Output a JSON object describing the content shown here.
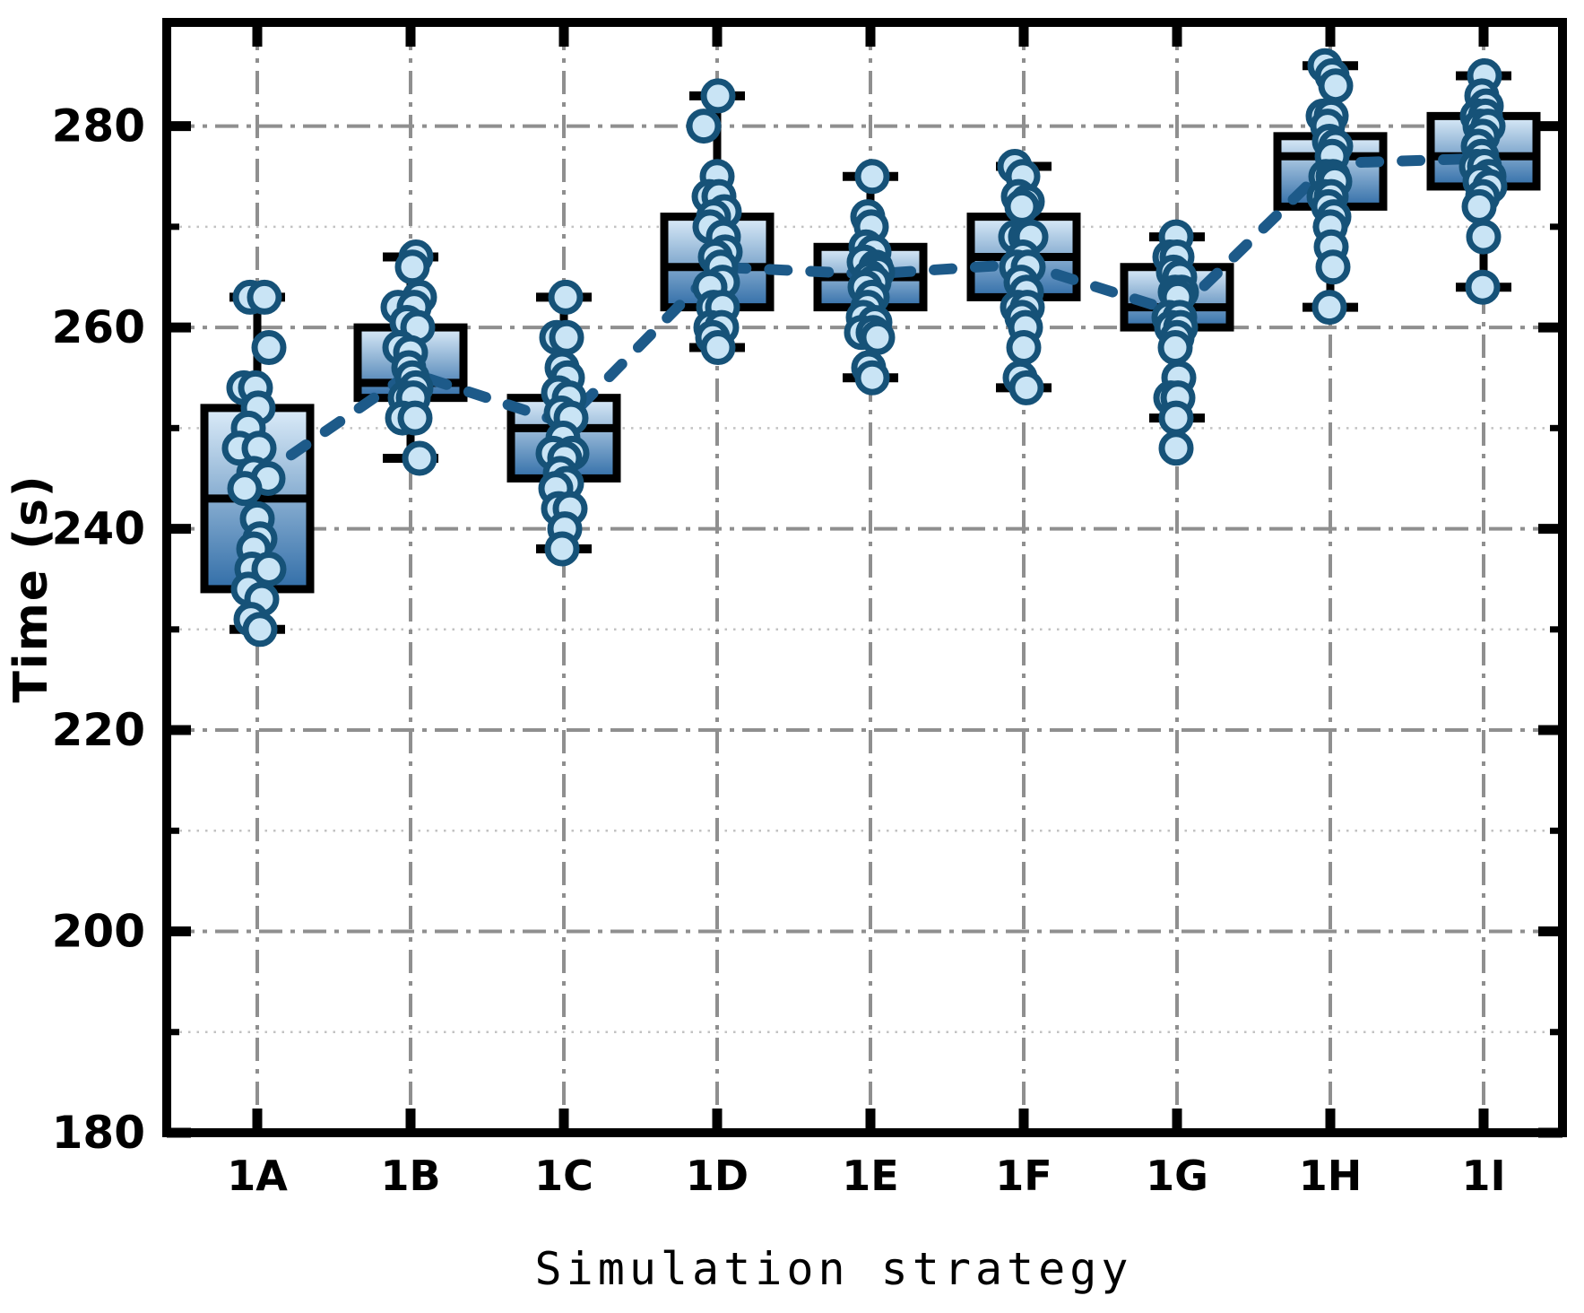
{
  "figure": {
    "xlabel": "Simulation strategy",
    "ylabel": "Time (s)"
  },
  "chart_data": {
    "type": "box",
    "title": "",
    "xlabel": "Simulation strategy",
    "ylabel": "Time (s)",
    "categories": [
      "1A",
      "1B",
      "1C",
      "1D",
      "1E",
      "1F",
      "1G",
      "1H",
      "1I"
    ],
    "ylim": [
      180,
      290.3
    ],
    "yticks_major": [
      180,
      200,
      220,
      240,
      260,
      280
    ],
    "yticks_minor": [
      190,
      210,
      230,
      250,
      270
    ],
    "grid": "major horizontal + vertical dash-dot, minor horizontal dotted",
    "legend": null,
    "boxes": [
      {
        "label": "1A",
        "whisker_low": 230,
        "q1": 234,
        "median": 243,
        "q3": 252,
        "whisker_high": 263
      },
      {
        "label": "1B",
        "whisker_low": 247,
        "q1": 253,
        "median": 254.5,
        "q3": 260,
        "whisker_high": 267
      },
      {
        "label": "1C",
        "whisker_low": 238,
        "q1": 245,
        "median": 250,
        "q3": 253,
        "whisker_high": 263
      },
      {
        "label": "1D",
        "whisker_low": 258,
        "q1": 262,
        "median": 266,
        "q3": 271,
        "whisker_high": 283
      },
      {
        "label": "1E",
        "whisker_low": 255,
        "q1": 262,
        "median": 265,
        "q3": 268,
        "whisker_high": 275
      },
      {
        "label": "1F",
        "whisker_low": 254,
        "q1": 263,
        "median": 267,
        "q3": 271,
        "whisker_high": 276
      },
      {
        "label": "1G",
        "whisker_low": 251,
        "q1": 260,
        "median": 262,
        "q3": 266,
        "whisker_high": 269
      },
      {
        "label": "1H",
        "whisker_low": 262,
        "q1": 272,
        "median": 277,
        "q3": 279,
        "whisker_high": 286
      },
      {
        "label": "1I",
        "whisker_low": 264,
        "q1": 274,
        "median": 277,
        "q3": 281,
        "whisker_high": 285
      }
    ],
    "trend_means": [
      245,
      255.5,
      250.5,
      266,
      265.3,
      266.3,
      261.5,
      276.3,
      276.8
    ],
    "points_by_category": [
      [
        [
          263,
          -8
        ],
        [
          263,
          8
        ],
        [
          258,
          13
        ],
        [
          254,
          -15
        ],
        [
          254,
          -2
        ],
        [
          252,
          1
        ],
        [
          250,
          -10
        ],
        [
          248,
          -20
        ],
        [
          248,
          2
        ],
        [
          245.5,
          -4
        ],
        [
          245,
          12
        ],
        [
          244,
          -14
        ],
        [
          241,
          0
        ],
        [
          239,
          3
        ],
        [
          238,
          -4
        ],
        [
          236,
          -6
        ],
        [
          236,
          13
        ],
        [
          234,
          -10
        ],
        [
          233,
          5
        ],
        [
          231,
          -7
        ],
        [
          230,
          3
        ]
      ],
      [
        [
          267,
          6
        ],
        [
          266,
          2
        ],
        [
          263,
          10
        ],
        [
          262,
          -14
        ],
        [
          262,
          4
        ],
        [
          260.5,
          -4
        ],
        [
          260,
          8
        ],
        [
          258,
          -12
        ],
        [
          257.5,
          0
        ],
        [
          256,
          -2
        ],
        [
          255,
          2
        ],
        [
          254,
          6
        ],
        [
          253,
          -6
        ],
        [
          253,
          3
        ],
        [
          251,
          -9
        ],
        [
          251,
          5
        ],
        [
          247,
          10
        ]
      ],
      [
        [
          263,
          2
        ],
        [
          259,
          -8
        ],
        [
          259,
          3
        ],
        [
          256,
          -2
        ],
        [
          255,
          4
        ],
        [
          253.5,
          -6
        ],
        [
          253,
          6
        ],
        [
          251.5,
          -3
        ],
        [
          251,
          8
        ],
        [
          249,
          -1
        ],
        [
          247.5,
          -12
        ],
        [
          247.5,
          9
        ],
        [
          247,
          1
        ],
        [
          245.5,
          -4
        ],
        [
          244.5,
          3
        ],
        [
          244,
          -9
        ],
        [
          242,
          -6
        ],
        [
          242,
          7
        ],
        [
          240,
          1
        ],
        [
          238,
          -2
        ]
      ],
      [
        [
          283,
          1
        ],
        [
          280,
          -15
        ],
        [
          275,
          0
        ],
        [
          273,
          -9
        ],
        [
          273,
          2
        ],
        [
          271.5,
          8
        ],
        [
          271,
          -4
        ],
        [
          270,
          -8
        ],
        [
          269,
          7
        ],
        [
          267.5,
          9
        ],
        [
          267,
          -2
        ],
        [
          266,
          4
        ],
        [
          264.5,
          6
        ],
        [
          264,
          -8
        ],
        [
          262,
          -4
        ],
        [
          262,
          6
        ],
        [
          260,
          -7
        ],
        [
          260,
          5
        ],
        [
          259,
          -5
        ],
        [
          258,
          1
        ]
      ],
      [
        [
          275,
          2
        ],
        [
          271,
          -3
        ],
        [
          270,
          1
        ],
        [
          268,
          -5
        ],
        [
          267.5,
          4
        ],
        [
          266.5,
          -7
        ],
        [
          266,
          6
        ],
        [
          265.5,
          8
        ],
        [
          265,
          -1
        ],
        [
          264.5,
          4
        ],
        [
          264,
          -6
        ],
        [
          263,
          2
        ],
        [
          262,
          -3
        ],
        [
          261,
          -8
        ],
        [
          260.5,
          5
        ],
        [
          259.5,
          -10
        ],
        [
          259.5,
          3
        ],
        [
          259,
          8
        ],
        [
          256,
          -2
        ],
        [
          255,
          2
        ]
      ],
      [
        [
          276,
          -10
        ],
        [
          275,
          -1
        ],
        [
          273,
          -6
        ],
        [
          272.5,
          4
        ],
        [
          272,
          -2
        ],
        [
          269,
          -9
        ],
        [
          269,
          2
        ],
        [
          269,
          8
        ],
        [
          267,
          -1
        ],
        [
          266,
          -8
        ],
        [
          266,
          5
        ],
        [
          264.5,
          -3
        ],
        [
          263.5,
          3
        ],
        [
          262,
          -7
        ],
        [
          262,
          4
        ],
        [
          261,
          -2
        ],
        [
          260,
          2
        ],
        [
          258,
          0
        ],
        [
          255,
          -4
        ],
        [
          254,
          3
        ]
      ],
      [
        [
          269,
          -1
        ],
        [
          267,
          -8
        ],
        [
          267,
          0
        ],
        [
          265.5,
          -4
        ],
        [
          265,
          3
        ],
        [
          263.5,
          -2
        ],
        [
          263.5,
          5
        ],
        [
          263,
          1
        ],
        [
          261,
          -9
        ],
        [
          261,
          3
        ],
        [
          260,
          -6
        ],
        [
          260,
          4
        ],
        [
          259,
          0
        ],
        [
          258,
          -2
        ],
        [
          255,
          2
        ],
        [
          253,
          -7
        ],
        [
          253,
          1
        ],
        [
          251,
          -1
        ],
        [
          248,
          -1
        ]
      ],
      [
        [
          286,
          -6
        ],
        [
          285,
          2
        ],
        [
          284,
          6
        ],
        [
          281,
          -8
        ],
        [
          281,
          1
        ],
        [
          280,
          -3
        ],
        [
          278.5,
          -1
        ],
        [
          278,
          6
        ],
        [
          277,
          2
        ],
        [
          275,
          -5
        ],
        [
          275,
          3
        ],
        [
          274.5,
          5
        ],
        [
          273,
          -7
        ],
        [
          273,
          1
        ],
        [
          272,
          -2
        ],
        [
          271,
          4
        ],
        [
          270,
          0
        ],
        [
          268,
          1
        ],
        [
          266,
          3
        ],
        [
          262,
          -1
        ]
      ],
      [
        [
          285,
          1
        ],
        [
          283,
          -2
        ],
        [
          282,
          3
        ],
        [
          281,
          -7
        ],
        [
          281,
          2
        ],
        [
          280,
          -4
        ],
        [
          280,
          5
        ],
        [
          279,
          -1
        ],
        [
          278,
          -6
        ],
        [
          277,
          -2
        ],
        [
          276,
          -8
        ],
        [
          276,
          1
        ],
        [
          275,
          6
        ],
        [
          274.5,
          -4
        ],
        [
          274,
          7
        ],
        [
          273,
          -1
        ],
        [
          272,
          -5
        ],
        [
          269,
          0
        ],
        [
          264,
          -1
        ]
      ]
    ],
    "colors": {
      "axis": "#000000",
      "grid_major": "#8f8f8f",
      "grid_minor": "#c2c2c2",
      "box_border": "#000000",
      "box_gradient_top": "#dcecf9",
      "box_gradient_bottom": "#326ea8",
      "point_fill": "#c9e4f5",
      "point_stroke": "#165278",
      "trend": "#1d5a89"
    }
  }
}
